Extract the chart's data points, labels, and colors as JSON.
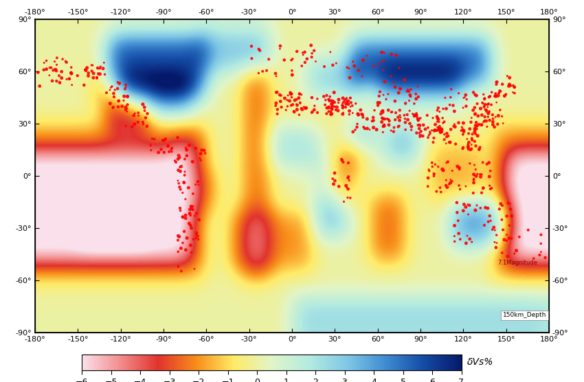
{
  "title": "",
  "colorbar_label": "δVs%",
  "colorbar_ticks": [
    -6,
    -5,
    -4,
    -3,
    -2,
    -1,
    0,
    1,
    2,
    3,
    4,
    5,
    6,
    7
  ],
  "vmin": -6,
  "vmax": 7,
  "annotation_depth": "150km_Depth",
  "annotation_magnitude": "7.1Magnitude",
  "xticks": [
    -180,
    -150,
    -120,
    -90,
    -60,
    -30,
    0,
    30,
    60,
    90,
    120,
    150,
    180
  ],
  "yticks": [
    -90,
    -60,
    -30,
    0,
    30,
    60,
    90
  ],
  "figsize": [
    8.5,
    5.56
  ],
  "dpi": 100
}
